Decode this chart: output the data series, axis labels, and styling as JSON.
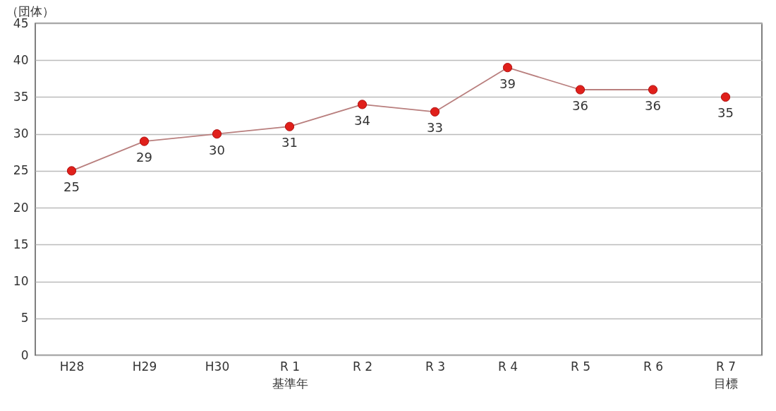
{
  "chart_data": {
    "type": "line",
    "ylabel": "（団体）",
    "categories": [
      "H28",
      "H29",
      "H30",
      "R 1\n基準年",
      "R 2",
      "R 3",
      "R 4",
      "R 5",
      "R 6",
      "R 7\n目標"
    ],
    "series": [
      {
        "color": "#e0201b",
        "values": [
          25,
          29,
          30,
          31,
          34,
          33,
          39,
          36,
          36,
          null
        ]
      },
      {
        "type": "scatter",
        "color": "#e0201b",
        "values": [
          null,
          null,
          null,
          null,
          null,
          null,
          null,
          null,
          null,
          35
        ]
      }
    ],
    "ylim": [
      0,
      45
    ],
    "yticks": [
      0,
      5,
      10,
      15,
      20,
      25,
      30,
      35,
      40,
      45
    ],
    "grid": "y",
    "marker": "circle",
    "data_labels": true
  }
}
